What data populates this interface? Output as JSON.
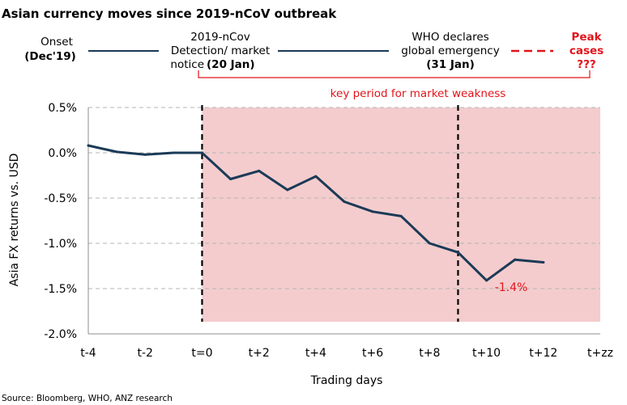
{
  "chart_data": {
    "type": "line",
    "title": "Asian currency moves since 2019-nCoV outbreak",
    "xlabel": "Trading days",
    "ylabel": "Asia FX returns vs. USD",
    "ylim": [
      -2.0,
      0.5
    ],
    "yticks": [
      0.5,
      0.0,
      -0.5,
      -1.0,
      -1.5,
      -2.0
    ],
    "ytick_labels": [
      "0.5%",
      "0.0%",
      "-0.5%",
      "-1.0%",
      "-1.5%",
      "-2.0%"
    ],
    "xlim": [
      -4,
      14
    ],
    "xticks": [
      -4,
      -2,
      0,
      2,
      4,
      6,
      8,
      10,
      12,
      14
    ],
    "xtick_labels": [
      "t-4",
      "t-2",
      "t=0",
      "t+2",
      "t+4",
      "t+6",
      "t+8",
      "t+10",
      "t+12",
      "t+zz"
    ],
    "grid": "horizontal dashed",
    "series": [
      {
        "name": "Asia FX returns vs. USD",
        "color": "#1b3a57",
        "x": [
          -4,
          -3,
          -2,
          -1,
          0,
          1,
          2,
          3,
          4,
          5,
          6,
          7,
          8,
          9,
          10,
          11,
          12
        ],
        "values": [
          0.08,
          0.01,
          -0.02,
          0.0,
          0.0,
          -0.29,
          -0.2,
          -0.41,
          -0.26,
          -0.54,
          -0.65,
          -0.7,
          -1.0,
          -1.1,
          -1.41,
          -1.18,
          -1.21
        ]
      }
    ],
    "shaded_region": {
      "x_start": 0,
      "x_end": 14,
      "color": "#f4cccd"
    },
    "vertical_lines": [
      {
        "x": 0,
        "label": "20 Jan"
      },
      {
        "x": 9,
        "label": "31 Jan"
      }
    ],
    "annotations": {
      "trough_label": "-1.4%",
      "key_period": "key period for market weakness"
    }
  },
  "timeline": {
    "onset_label": "Onset",
    "onset_date": "(Dec'19)",
    "detection_line1": "2019-nCov",
    "detection_line2": "Detection/ market",
    "detection_line3": "notice",
    "detection_date": "(20 Jan)",
    "who_line1": "WHO declares",
    "who_line2": "global emergency",
    "who_date": "(31 Jan)",
    "peak_line1": "Peak",
    "peak_line2": "cases",
    "peak_line3": "???"
  },
  "source": "Source: Bloomberg, WHO, ANZ research",
  "colors": {
    "series": "#1b3a57",
    "accent_red": "#e2141b",
    "shade": "#f4cccd",
    "grid": "#b5b5b5",
    "axis": "#8c8c8c"
  }
}
